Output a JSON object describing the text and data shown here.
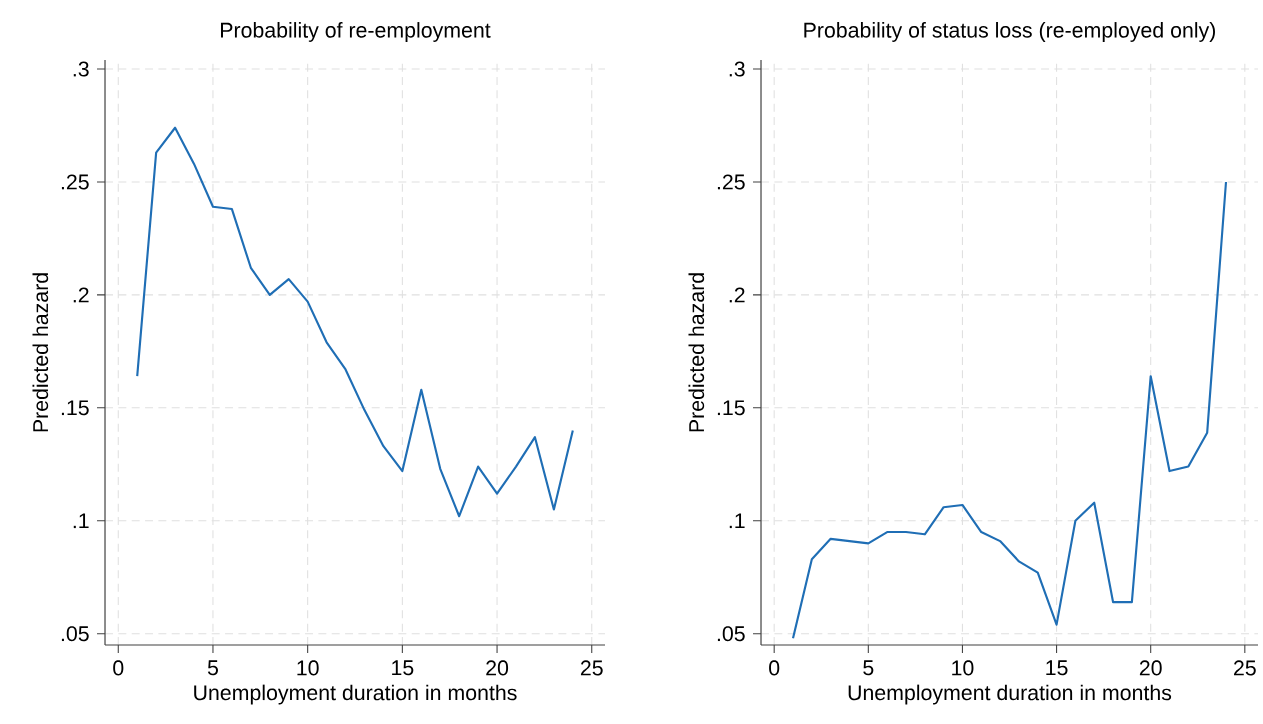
{
  "chart_data": [
    {
      "type": "line",
      "title": "Probability of re-employment",
      "xlabel": "Unemployment duration in months",
      "ylabel": "Predicted hazard",
      "x": [
        1,
        2,
        3,
        4,
        5,
        6,
        7,
        8,
        9,
        10,
        11,
        12,
        13,
        14,
        15,
        16,
        17,
        18,
        19,
        20,
        21,
        22,
        23,
        24
      ],
      "series": [
        {
          "color": "#1f6eb5",
          "values": [
            0.164,
            0.263,
            0.274,
            0.258,
            0.239,
            0.238,
            0.212,
            0.2,
            0.207,
            0.197,
            0.179,
            0.167,
            0.149,
            0.133,
            0.122,
            0.158,
            0.123,
            0.102,
            0.124,
            0.112,
            0.124,
            0.137,
            0.105,
            0.14
          ]
        }
      ],
      "xlim": [
        -0.7,
        25.7
      ],
      "ylim": [
        0.045,
        0.304
      ],
      "xticks": [
        0,
        5,
        10,
        15,
        20,
        25
      ],
      "yticks": [
        {
          "value": 0.05,
          "label": ".05"
        },
        {
          "value": 0.1,
          "label": ".1"
        },
        {
          "value": 0.15,
          "label": ".15"
        },
        {
          "value": 0.2,
          "label": ".2"
        },
        {
          "value": 0.25,
          "label": ".25"
        },
        {
          "value": 0.3,
          "label": ".3"
        }
      ],
      "grid": true,
      "line_style": "solid"
    },
    {
      "type": "line",
      "title": "Probability of status loss (re-employed only)",
      "xlabel": "Unemployment duration in months",
      "ylabel": "Predicted hazard",
      "x": [
        1,
        2,
        3,
        4,
        5,
        6,
        7,
        8,
        9,
        10,
        11,
        12,
        13,
        14,
        15,
        16,
        17,
        18,
        19,
        20,
        21,
        22,
        23,
        24
      ],
      "series": [
        {
          "color": "#1f6eb5",
          "values": [
            0.048,
            0.083,
            0.092,
            0.091,
            0.09,
            0.095,
            0.095,
            0.094,
            0.106,
            0.107,
            0.095,
            0.091,
            0.082,
            0.077,
            0.054,
            0.1,
            0.108,
            0.064,
            0.064,
            0.164,
            0.122,
            0.124,
            0.139,
            0.25
          ]
        }
      ],
      "xlim": [
        -0.7,
        25.7
      ],
      "ylim": [
        0.045,
        0.304
      ],
      "xticks": [
        0,
        5,
        10,
        15,
        20,
        25
      ],
      "yticks": [
        {
          "value": 0.05,
          "label": ".05"
        },
        {
          "value": 0.1,
          "label": ".1"
        },
        {
          "value": 0.15,
          "label": ".15"
        },
        {
          "value": 0.2,
          "label": ".2"
        },
        {
          "value": 0.25,
          "label": ".25"
        },
        {
          "value": 0.3,
          "label": ".3"
        }
      ],
      "grid": true,
      "line_style": "solid"
    }
  ]
}
